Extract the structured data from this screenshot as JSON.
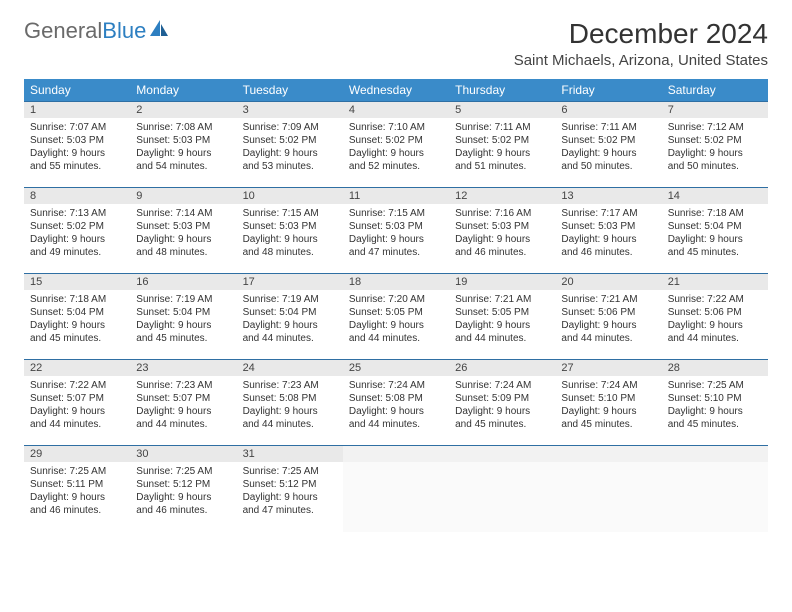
{
  "brand": {
    "part1": "General",
    "part2": "Blue"
  },
  "title": "December 2024",
  "location": "Saint Michaels, Arizona, United States",
  "colors": {
    "header_bg": "#3a8bc9",
    "header_text": "#ffffff",
    "daynum_bg": "#e9e9e9",
    "row_border": "#2f6fa3",
    "logo_gray": "#6a6a6a",
    "logo_blue": "#2d7fc1"
  },
  "weekdays": [
    "Sunday",
    "Monday",
    "Tuesday",
    "Wednesday",
    "Thursday",
    "Friday",
    "Saturday"
  ],
  "cells": [
    {
      "n": "1",
      "sr": "7:07 AM",
      "ss": "5:03 PM",
      "dl": "9 hours and 55 minutes."
    },
    {
      "n": "2",
      "sr": "7:08 AM",
      "ss": "5:03 PM",
      "dl": "9 hours and 54 minutes."
    },
    {
      "n": "3",
      "sr": "7:09 AM",
      "ss": "5:02 PM",
      "dl": "9 hours and 53 minutes."
    },
    {
      "n": "4",
      "sr": "7:10 AM",
      "ss": "5:02 PM",
      "dl": "9 hours and 52 minutes."
    },
    {
      "n": "5",
      "sr": "7:11 AM",
      "ss": "5:02 PM",
      "dl": "9 hours and 51 minutes."
    },
    {
      "n": "6",
      "sr": "7:11 AM",
      "ss": "5:02 PM",
      "dl": "9 hours and 50 minutes."
    },
    {
      "n": "7",
      "sr": "7:12 AM",
      "ss": "5:02 PM",
      "dl": "9 hours and 50 minutes."
    },
    {
      "n": "8",
      "sr": "7:13 AM",
      "ss": "5:02 PM",
      "dl": "9 hours and 49 minutes."
    },
    {
      "n": "9",
      "sr": "7:14 AM",
      "ss": "5:03 PM",
      "dl": "9 hours and 48 minutes."
    },
    {
      "n": "10",
      "sr": "7:15 AM",
      "ss": "5:03 PM",
      "dl": "9 hours and 48 minutes."
    },
    {
      "n": "11",
      "sr": "7:15 AM",
      "ss": "5:03 PM",
      "dl": "9 hours and 47 minutes."
    },
    {
      "n": "12",
      "sr": "7:16 AM",
      "ss": "5:03 PM",
      "dl": "9 hours and 46 minutes."
    },
    {
      "n": "13",
      "sr": "7:17 AM",
      "ss": "5:03 PM",
      "dl": "9 hours and 46 minutes."
    },
    {
      "n": "14",
      "sr": "7:18 AM",
      "ss": "5:04 PM",
      "dl": "9 hours and 45 minutes."
    },
    {
      "n": "15",
      "sr": "7:18 AM",
      "ss": "5:04 PM",
      "dl": "9 hours and 45 minutes."
    },
    {
      "n": "16",
      "sr": "7:19 AM",
      "ss": "5:04 PM",
      "dl": "9 hours and 45 minutes."
    },
    {
      "n": "17",
      "sr": "7:19 AM",
      "ss": "5:04 PM",
      "dl": "9 hours and 44 minutes."
    },
    {
      "n": "18",
      "sr": "7:20 AM",
      "ss": "5:05 PM",
      "dl": "9 hours and 44 minutes."
    },
    {
      "n": "19",
      "sr": "7:21 AM",
      "ss": "5:05 PM",
      "dl": "9 hours and 44 minutes."
    },
    {
      "n": "20",
      "sr": "7:21 AM",
      "ss": "5:06 PM",
      "dl": "9 hours and 44 minutes."
    },
    {
      "n": "21",
      "sr": "7:22 AM",
      "ss": "5:06 PM",
      "dl": "9 hours and 44 minutes."
    },
    {
      "n": "22",
      "sr": "7:22 AM",
      "ss": "5:07 PM",
      "dl": "9 hours and 44 minutes."
    },
    {
      "n": "23",
      "sr": "7:23 AM",
      "ss": "5:07 PM",
      "dl": "9 hours and 44 minutes."
    },
    {
      "n": "24",
      "sr": "7:23 AM",
      "ss": "5:08 PM",
      "dl": "9 hours and 44 minutes."
    },
    {
      "n": "25",
      "sr": "7:24 AM",
      "ss": "5:08 PM",
      "dl": "9 hours and 44 minutes."
    },
    {
      "n": "26",
      "sr": "7:24 AM",
      "ss": "5:09 PM",
      "dl": "9 hours and 45 minutes."
    },
    {
      "n": "27",
      "sr": "7:24 AM",
      "ss": "5:10 PM",
      "dl": "9 hours and 45 minutes."
    },
    {
      "n": "28",
      "sr": "7:25 AM",
      "ss": "5:10 PM",
      "dl": "9 hours and 45 minutes."
    },
    {
      "n": "29",
      "sr": "7:25 AM",
      "ss": "5:11 PM",
      "dl": "9 hours and 46 minutes."
    },
    {
      "n": "30",
      "sr": "7:25 AM",
      "ss": "5:12 PM",
      "dl": "9 hours and 46 minutes."
    },
    {
      "n": "31",
      "sr": "7:25 AM",
      "ss": "5:12 PM",
      "dl": "9 hours and 47 minutes."
    },
    {
      "empty": true
    },
    {
      "empty": true
    },
    {
      "empty": true
    },
    {
      "empty": true
    }
  ],
  "labels": {
    "sunrise": "Sunrise: ",
    "sunset": "Sunset: ",
    "daylight": "Daylight: "
  }
}
